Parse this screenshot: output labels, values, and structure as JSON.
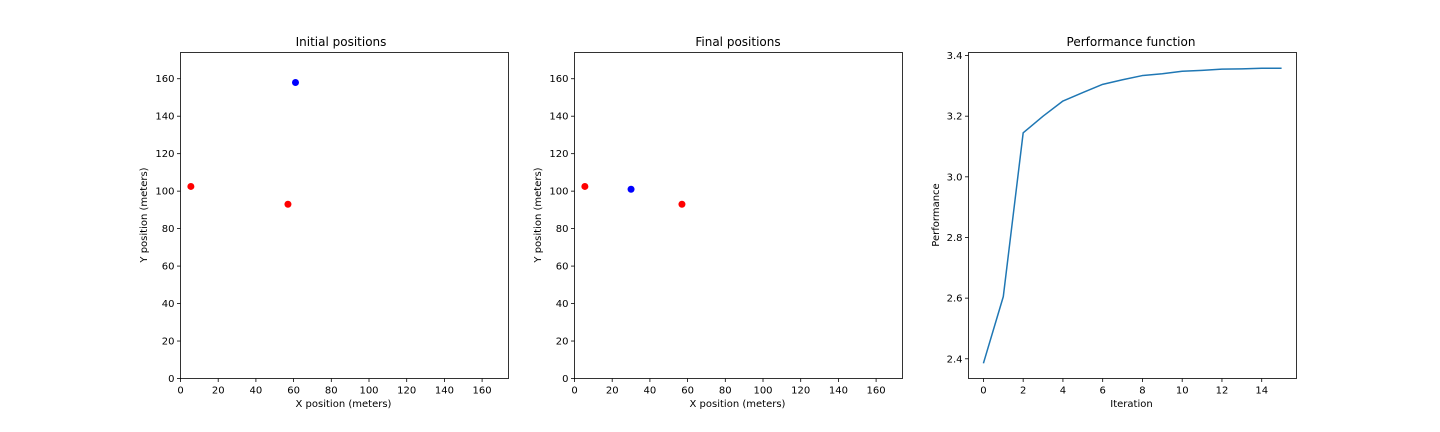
{
  "chart_data": [
    {
      "type": "scatter",
      "title": "Initial positions",
      "xlabel": "X position (meters)",
      "ylabel": "Y position (meters)",
      "xlim": [
        0,
        174
      ],
      "ylim": [
        0,
        174
      ],
      "xticks": [
        0,
        20,
        40,
        60,
        80,
        100,
        120,
        140,
        160
      ],
      "yticks": [
        0,
        20,
        40,
        60,
        80,
        100,
        120,
        140,
        160
      ],
      "grid": false,
      "series": [
        {
          "color": "#ff0000",
          "points": [
            [
              5.5,
              102.5
            ],
            [
              57,
              93
            ]
          ]
        },
        {
          "color": "#0000ff",
          "points": [
            [
              61,
              158
            ]
          ]
        }
      ]
    },
    {
      "type": "scatter",
      "title": "Final positions",
      "xlabel": "X position (meters)",
      "ylabel": "Y position (meters)",
      "xlim": [
        0,
        174
      ],
      "ylim": [
        0,
        174
      ],
      "xticks": [
        0,
        20,
        40,
        60,
        80,
        100,
        120,
        140,
        160
      ],
      "yticks": [
        0,
        20,
        40,
        60,
        80,
        100,
        120,
        140,
        160
      ],
      "grid": false,
      "series": [
        {
          "color": "#ff0000",
          "points": [
            [
              5.5,
              102.5
            ],
            [
              57,
              93
            ]
          ]
        },
        {
          "color": "#0000ff",
          "points": [
            [
              30,
              101
            ]
          ]
        }
      ]
    },
    {
      "type": "line",
      "title": "Performance function",
      "xlabel": "Iteration",
      "ylabel": "Performance",
      "xlim": [
        -0.75,
        15.75
      ],
      "ylim": [
        2.335,
        3.41
      ],
      "xticks": [
        0,
        2,
        4,
        6,
        8,
        10,
        12,
        14
      ],
      "yticks": [
        2.4,
        2.6,
        2.8,
        3.0,
        3.2,
        3.4
      ],
      "ytick_decimals": 1,
      "grid": false,
      "series": [
        {
          "color": "#1f77b4",
          "x": [
            0,
            1,
            2,
            3,
            4,
            5,
            6,
            7,
            8,
            9,
            10,
            11,
            12,
            13,
            14,
            15
          ],
          "values": [
            2.385,
            2.605,
            3.145,
            3.2,
            3.25,
            3.278,
            3.305,
            3.32,
            3.334,
            3.34,
            3.348,
            3.351,
            3.355,
            3.356,
            3.358,
            3.358
          ]
        }
      ]
    }
  ]
}
